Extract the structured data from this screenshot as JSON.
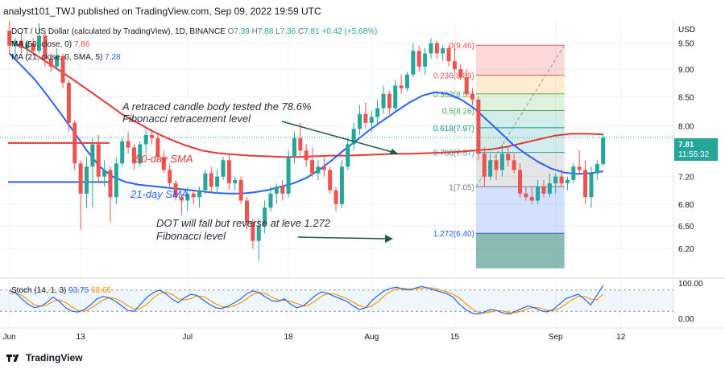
{
  "header": {
    "published_text": "analyst101_TWJ published on TradingView.com, Sep 09, 2022 19:59 UTC"
  },
  "legend": {
    "symbol_line": "DOT / US Dollar (calculated by TradingView), 1D, BINANCE",
    "ohlc": {
      "o_label": "O",
      "o": "7.39",
      "h_label": "H",
      "h": "7.88",
      "l_label": "L",
      "l": "7.36",
      "c_label": "C",
      "c": "7.81",
      "change": "+0.42 (+5.68%)"
    },
    "ma1_label": "MA (50, close, 0)",
    "ma1_value": "7.86",
    "ma2_label": "MA (21, close, 0, SMA, 5)",
    "ma2_value": "7.28",
    "stoch_label": "Stoch (14, 1, 3)",
    "stoch_k": "93.75",
    "stoch_d": "68.65"
  },
  "price_axis": {
    "currency": "USD",
    "ticks": [
      "9.50",
      "9.00",
      "8.50",
      "8.00",
      "7.20",
      "6.80",
      "6.50",
      "6.20"
    ],
    "last_price": "7.81",
    "countdown": "11:55:32"
  },
  "stoch_axis": {
    "ticks": [
      "100.00",
      "0.00"
    ]
  },
  "time_axis": {
    "ticks": [
      "Jun",
      "13",
      "Jul",
      "18",
      "Aug",
      "15",
      "Sep",
      "12"
    ]
  },
  "fibonacci": {
    "levels": [
      {
        "label": "0(9.46)",
        "value": 9.46
      },
      {
        "label": "0.236(8.89)",
        "value": 8.89
      },
      {
        "label": "0.382(8.55)",
        "value": 8.55
      },
      {
        "label": "0.5(8.26)",
        "value": 8.26
      },
      {
        "label": "0.618(7.97)",
        "value": 7.97
      },
      {
        "label": "0.786(7.57)",
        "value": 7.57
      },
      {
        "label": "1(7.05)",
        "value": 7.05
      },
      {
        "label": "1.272(6.40)",
        "value": 6.4
      }
    ]
  },
  "annotations": {
    "note1_line1": "A retraced candle body tested the 78.6%",
    "note1_line2": "Fibonacci retracement level",
    "sma50_label": "50-day SMA",
    "sma21_label": "21-day SMA",
    "note2_line1": "DOT will fall but reverse at leve 1.272",
    "note2_line2": "Fibonacci level"
  },
  "branding": {
    "footer": "TradingView"
  },
  "colors": {
    "up": "#26a69a",
    "down": "#ef5350",
    "ma50": "#e53935",
    "ma21": "#2962ff",
    "stoch_k": "#2962ff",
    "stoch_d": "#ff9800"
  },
  "chart_data": {
    "type": "candlestick",
    "symbol": "DOT / US Dollar",
    "interval": "1D",
    "y_scale": "log",
    "ylim": [
      5.85,
      9.95
    ],
    "candles": [
      {
        "date": "2022-06-01",
        "o": 9.75,
        "h": 9.95,
        "l": 9.3,
        "c": 9.45
      },
      {
        "date": "2022-06-02",
        "o": 9.45,
        "h": 9.6,
        "l": 9.2,
        "c": 9.55
      },
      {
        "date": "2022-06-03",
        "o": 9.55,
        "h": 9.7,
        "l": 9.3,
        "c": 9.4
      },
      {
        "date": "2022-06-04",
        "o": 9.4,
        "h": 9.55,
        "l": 9.25,
        "c": 9.5
      },
      {
        "date": "2022-06-05",
        "o": 9.5,
        "h": 9.6,
        "l": 9.3,
        "c": 9.35
      },
      {
        "date": "2022-06-06",
        "o": 9.35,
        "h": 9.9,
        "l": 9.3,
        "c": 9.65
      },
      {
        "date": "2022-06-07",
        "o": 9.65,
        "h": 9.7,
        "l": 9.05,
        "c": 9.2
      },
      {
        "date": "2022-06-08",
        "o": 9.2,
        "h": 9.3,
        "l": 8.95,
        "c": 9.05
      },
      {
        "date": "2022-06-09",
        "o": 9.05,
        "h": 9.4,
        "l": 8.98,
        "c": 9.25
      },
      {
        "date": "2022-06-10",
        "o": 9.25,
        "h": 9.3,
        "l": 8.65,
        "c": 8.75
      },
      {
        "date": "2022-06-11",
        "o": 8.75,
        "h": 8.8,
        "l": 7.9,
        "c": 8.05
      },
      {
        "date": "2022-06-12",
        "o": 8.05,
        "h": 8.1,
        "l": 7.3,
        "c": 7.4
      },
      {
        "date": "2022-06-13",
        "o": 7.4,
        "h": 7.45,
        "l": 6.45,
        "c": 6.95
      },
      {
        "date": "2022-06-14",
        "o": 6.95,
        "h": 7.5,
        "l": 6.75,
        "c": 7.35
      },
      {
        "date": "2022-06-15",
        "o": 7.35,
        "h": 7.8,
        "l": 6.75,
        "c": 7.7
      },
      {
        "date": "2022-06-16",
        "o": 7.7,
        "h": 7.85,
        "l": 7.1,
        "c": 7.2
      },
      {
        "date": "2022-06-17",
        "o": 7.2,
        "h": 7.45,
        "l": 7.05,
        "c": 7.3
      },
      {
        "date": "2022-06-18",
        "o": 7.3,
        "h": 7.35,
        "l": 6.55,
        "c": 6.9
      },
      {
        "date": "2022-06-19",
        "o": 6.9,
        "h": 7.5,
        "l": 6.8,
        "c": 7.4
      },
      {
        "date": "2022-06-20",
        "o": 7.4,
        "h": 7.8,
        "l": 7.35,
        "c": 7.75
      },
      {
        "date": "2022-06-21",
        "o": 7.75,
        "h": 7.9,
        "l": 7.55,
        "c": 7.65
      },
      {
        "date": "2022-06-22",
        "o": 7.65,
        "h": 7.7,
        "l": 7.3,
        "c": 7.4
      },
      {
        "date": "2022-06-23",
        "o": 7.4,
        "h": 7.75,
        "l": 7.35,
        "c": 7.7
      },
      {
        "date": "2022-06-24",
        "o": 7.7,
        "h": 7.95,
        "l": 7.55,
        "c": 7.85
      },
      {
        "date": "2022-06-25",
        "o": 7.85,
        "h": 7.95,
        "l": 7.7,
        "c": 7.8
      },
      {
        "date": "2022-06-26",
        "o": 7.8,
        "h": 7.9,
        "l": 7.45,
        "c": 7.5
      },
      {
        "date": "2022-06-27",
        "o": 7.5,
        "h": 7.6,
        "l": 7.25,
        "c": 7.3
      },
      {
        "date": "2022-06-28",
        "o": 7.3,
        "h": 7.4,
        "l": 7.05,
        "c": 7.1
      },
      {
        "date": "2022-06-29",
        "o": 7.1,
        "h": 7.15,
        "l": 6.85,
        "c": 6.9
      },
      {
        "date": "2022-06-30",
        "o": 6.9,
        "h": 6.95,
        "l": 6.65,
        "c": 6.85
      },
      {
        "date": "2022-07-01",
        "o": 6.85,
        "h": 7.05,
        "l": 6.7,
        "c": 6.95
      },
      {
        "date": "2022-07-02",
        "o": 6.95,
        "h": 7.0,
        "l": 6.8,
        "c": 6.9
      },
      {
        "date": "2022-07-03",
        "o": 6.9,
        "h": 7.05,
        "l": 6.75,
        "c": 7.0
      },
      {
        "date": "2022-07-04",
        "o": 7.0,
        "h": 7.3,
        "l": 6.95,
        "c": 7.25
      },
      {
        "date": "2022-07-05",
        "o": 7.25,
        "h": 7.35,
        "l": 6.95,
        "c": 7.05
      },
      {
        "date": "2022-07-06",
        "o": 7.05,
        "h": 7.3,
        "l": 6.95,
        "c": 7.2
      },
      {
        "date": "2022-07-07",
        "o": 7.2,
        "h": 7.5,
        "l": 7.15,
        "c": 7.45
      },
      {
        "date": "2022-07-08",
        "o": 7.45,
        "h": 7.55,
        "l": 7.0,
        "c": 7.1
      },
      {
        "date": "2022-07-09",
        "o": 7.1,
        "h": 7.2,
        "l": 7.0,
        "c": 7.15
      },
      {
        "date": "2022-07-10",
        "o": 7.15,
        "h": 7.2,
        "l": 6.8,
        "c": 6.85
      },
      {
        "date": "2022-07-11",
        "o": 6.85,
        "h": 6.9,
        "l": 6.45,
        "c": 6.55
      },
      {
        "date": "2022-07-12",
        "o": 6.55,
        "h": 6.6,
        "l": 6.2,
        "c": 6.3
      },
      {
        "date": "2022-07-13",
        "o": 6.3,
        "h": 6.6,
        "l": 6.05,
        "c": 6.5
      },
      {
        "date": "2022-07-14",
        "o": 6.5,
        "h": 6.85,
        "l": 6.4,
        "c": 6.75
      },
      {
        "date": "2022-07-15",
        "o": 6.75,
        "h": 7.05,
        "l": 6.7,
        "c": 6.95
      },
      {
        "date": "2022-07-16",
        "o": 6.95,
        "h": 7.1,
        "l": 6.8,
        "c": 7.05
      },
      {
        "date": "2022-07-17",
        "o": 7.05,
        "h": 7.15,
        "l": 6.85,
        "c": 6.95
      },
      {
        "date": "2022-07-18",
        "o": 6.95,
        "h": 7.6,
        "l": 6.9,
        "c": 7.5
      },
      {
        "date": "2022-07-19",
        "o": 7.5,
        "h": 7.9,
        "l": 7.4,
        "c": 7.8
      },
      {
        "date": "2022-07-20",
        "o": 7.8,
        "h": 8.05,
        "l": 7.5,
        "c": 7.6
      },
      {
        "date": "2022-07-21",
        "o": 7.6,
        "h": 7.7,
        "l": 7.35,
        "c": 7.45
      },
      {
        "date": "2022-07-22",
        "o": 7.45,
        "h": 7.65,
        "l": 7.2,
        "c": 7.25
      },
      {
        "date": "2022-07-23",
        "o": 7.25,
        "h": 7.45,
        "l": 7.15,
        "c": 7.35
      },
      {
        "date": "2022-07-24",
        "o": 7.35,
        "h": 7.5,
        "l": 7.2,
        "c": 7.3
      },
      {
        "date": "2022-07-25",
        "o": 7.3,
        "h": 7.35,
        "l": 6.95,
        "c": 7.0
      },
      {
        "date": "2022-07-26",
        "o": 7.0,
        "h": 7.05,
        "l": 6.7,
        "c": 6.8
      },
      {
        "date": "2022-07-27",
        "o": 6.8,
        "h": 7.45,
        "l": 6.75,
        "c": 7.35
      },
      {
        "date": "2022-07-28",
        "o": 7.35,
        "h": 7.8,
        "l": 7.3,
        "c": 7.7
      },
      {
        "date": "2022-07-29",
        "o": 7.7,
        "h": 8.05,
        "l": 7.6,
        "c": 7.95
      },
      {
        "date": "2022-07-30",
        "o": 7.95,
        "h": 8.35,
        "l": 7.85,
        "c": 8.2
      },
      {
        "date": "2022-07-31",
        "o": 8.2,
        "h": 8.4,
        "l": 7.95,
        "c": 8.05
      },
      {
        "date": "2022-08-01",
        "o": 8.05,
        "h": 8.25,
        "l": 7.9,
        "c": 8.15
      },
      {
        "date": "2022-08-02",
        "o": 8.15,
        "h": 8.45,
        "l": 8.0,
        "c": 8.3
      },
      {
        "date": "2022-08-03",
        "o": 8.3,
        "h": 8.7,
        "l": 8.2,
        "c": 8.55
      },
      {
        "date": "2022-08-04",
        "o": 8.55,
        "h": 8.6,
        "l": 8.2,
        "c": 8.3
      },
      {
        "date": "2022-08-05",
        "o": 8.3,
        "h": 8.8,
        "l": 8.25,
        "c": 8.7
      },
      {
        "date": "2022-08-06",
        "o": 8.7,
        "h": 8.9,
        "l": 8.55,
        "c": 8.65
      },
      {
        "date": "2022-08-07",
        "o": 8.65,
        "h": 8.95,
        "l": 8.6,
        "c": 8.9
      },
      {
        "date": "2022-08-08",
        "o": 8.9,
        "h": 9.5,
        "l": 8.85,
        "c": 9.35
      },
      {
        "date": "2022-08-09",
        "o": 9.35,
        "h": 9.45,
        "l": 8.95,
        "c": 9.05
      },
      {
        "date": "2022-08-10",
        "o": 9.05,
        "h": 9.4,
        "l": 8.9,
        "c": 9.3
      },
      {
        "date": "2022-08-11",
        "o": 9.3,
        "h": 9.6,
        "l": 9.2,
        "c": 9.5
      },
      {
        "date": "2022-08-12",
        "o": 9.5,
        "h": 9.55,
        "l": 9.2,
        "c": 9.3
      },
      {
        "date": "2022-08-13",
        "o": 9.3,
        "h": 9.46,
        "l": 9.15,
        "c": 9.4
      },
      {
        "date": "2022-08-14",
        "o": 9.4,
        "h": 9.45,
        "l": 9.05,
        "c": 9.15
      },
      {
        "date": "2022-08-15",
        "o": 9.15,
        "h": 9.4,
        "l": 8.95,
        "c": 9.0
      },
      {
        "date": "2022-08-16",
        "o": 9.0,
        "h": 9.1,
        "l": 8.8,
        "c": 8.85
      },
      {
        "date": "2022-08-17",
        "o": 8.85,
        "h": 9.0,
        "l": 8.5,
        "c": 8.55
      },
      {
        "date": "2022-08-18",
        "o": 8.55,
        "h": 8.65,
        "l": 8.35,
        "c": 8.45
      },
      {
        "date": "2022-08-19",
        "o": 8.45,
        "h": 8.5,
        "l": 7.45,
        "c": 7.55
      },
      {
        "date": "2022-08-20",
        "o": 7.55,
        "h": 7.65,
        "l": 7.05,
        "c": 7.2
      },
      {
        "date": "2022-08-21",
        "o": 7.2,
        "h": 7.55,
        "l": 7.15,
        "c": 7.45
      },
      {
        "date": "2022-08-22",
        "o": 7.45,
        "h": 7.55,
        "l": 7.15,
        "c": 7.3
      },
      {
        "date": "2022-08-23",
        "o": 7.3,
        "h": 7.7,
        "l": 7.2,
        "c": 7.55
      },
      {
        "date": "2022-08-24",
        "o": 7.55,
        "h": 7.65,
        "l": 7.35,
        "c": 7.45
      },
      {
        "date": "2022-08-25",
        "o": 7.45,
        "h": 7.55,
        "l": 7.25,
        "c": 7.3
      },
      {
        "date": "2022-08-26",
        "o": 7.3,
        "h": 7.4,
        "l": 6.9,
        "c": 6.95
      },
      {
        "date": "2022-08-27",
        "o": 6.95,
        "h": 7.05,
        "l": 6.85,
        "c": 6.9
      },
      {
        "date": "2022-08-28",
        "o": 6.9,
        "h": 7.05,
        "l": 6.8,
        "c": 6.85
      },
      {
        "date": "2022-08-29",
        "o": 6.85,
        "h": 7.15,
        "l": 6.8,
        "c": 7.05
      },
      {
        "date": "2022-08-30",
        "o": 7.05,
        "h": 7.15,
        "l": 6.9,
        "c": 6.95
      },
      {
        "date": "2022-08-31",
        "o": 6.95,
        "h": 7.25,
        "l": 6.9,
        "c": 7.1
      },
      {
        "date": "2022-09-01",
        "o": 7.1,
        "h": 7.25,
        "l": 6.95,
        "c": 7.2
      },
      {
        "date": "2022-09-02",
        "o": 7.2,
        "h": 7.3,
        "l": 7.05,
        "c": 7.1
      },
      {
        "date": "2022-09-03",
        "o": 7.1,
        "h": 7.2,
        "l": 7.0,
        "c": 7.15
      },
      {
        "date": "2022-09-04",
        "o": 7.15,
        "h": 7.4,
        "l": 7.1,
        "c": 7.35
      },
      {
        "date": "2022-09-05",
        "o": 7.35,
        "h": 7.6,
        "l": 7.25,
        "c": 7.3
      },
      {
        "date": "2022-09-06",
        "o": 7.3,
        "h": 7.45,
        "l": 6.8,
        "c": 6.9
      },
      {
        "date": "2022-09-07",
        "o": 6.9,
        "h": 7.35,
        "l": 6.75,
        "c": 7.25
      },
      {
        "date": "2022-09-08",
        "o": 7.25,
        "h": 7.45,
        "l": 7.15,
        "c": 7.39
      },
      {
        "date": "2022-09-09",
        "o": 7.39,
        "h": 7.88,
        "l": 7.36,
        "c": 7.81
      }
    ],
    "ma50": [
      9.55,
      9.4,
      9.2,
      9.0,
      8.8,
      8.6,
      8.4,
      8.2,
      8.05,
      7.9,
      7.78,
      7.68,
      7.6,
      7.56,
      7.54,
      7.52,
      7.51,
      7.5,
      7.5,
      7.51,
      7.52,
      7.52,
      7.53,
      7.54,
      7.55,
      7.55,
      7.56,
      7.57,
      7.58,
      7.6,
      7.62,
      7.66,
      7.72,
      7.78,
      7.84,
      7.87,
      7.87,
      7.86
    ],
    "ma21": [
      9.3,
      9.05,
      8.8,
      8.5,
      8.2,
      7.9,
      7.6,
      7.35,
      7.2,
      7.12,
      7.08,
      7.06,
      7.04,
      7.02,
      7.0,
      6.98,
      6.96,
      6.95,
      6.95,
      6.97,
      7.0,
      7.05,
      7.1,
      7.18,
      7.3,
      7.45,
      7.62,
      7.78,
      7.95,
      8.1,
      8.25,
      8.4,
      8.52,
      8.58,
      8.55,
      8.45,
      8.3,
      8.1,
      7.9,
      7.7,
      7.55,
      7.42,
      7.32,
      7.26,
      7.24,
      7.25,
      7.28
    ],
    "stoch_k": [
      78,
      72,
      55,
      40,
      30,
      34,
      45,
      60,
      48,
      30,
      20,
      18,
      25,
      38,
      55,
      62,
      58,
      48,
      35,
      22,
      20,
      40,
      60,
      72,
      80,
      70,
      55,
      44,
      58,
      68,
      65,
      52,
      40,
      30,
      28,
      35,
      44,
      55,
      70,
      78,
      72,
      60,
      50,
      48,
      55,
      40,
      30,
      35,
      50,
      65,
      75,
      70,
      62,
      55,
      48,
      35,
      25,
      30,
      50,
      65,
      78,
      85,
      88,
      82,
      80,
      86,
      90,
      85,
      80,
      75,
      70,
      60,
      40,
      25,
      15,
      12,
      18,
      25,
      22,
      15,
      12,
      20,
      28,
      35,
      30,
      22,
      18,
      25,
      40,
      55,
      62,
      68,
      55,
      38,
      65,
      93.75
    ],
    "stoch_d": [
      70,
      72,
      65,
      52,
      38,
      34,
      38,
      48,
      52,
      45,
      32,
      22,
      20,
      28,
      40,
      52,
      58,
      56,
      47,
      35,
      26,
      28,
      40,
      57,
      70,
      74,
      68,
      56,
      52,
      56,
      63,
      62,
      52,
      41,
      33,
      31,
      36,
      44,
      56,
      68,
      73,
      70,
      60,
      52,
      51,
      48,
      42,
      35,
      38,
      50,
      63,
      70,
      69,
      62,
      55,
      46,
      36,
      30,
      35,
      48,
      64,
      76,
      84,
      85,
      83,
      83,
      85,
      87,
      85,
      80,
      75,
      68,
      57,
      42,
      27,
      17,
      15,
      18,
      22,
      21,
      16,
      16,
      21,
      28,
      31,
      29,
      23,
      22,
      28,
      40,
      52,
      62,
      62,
      54,
      53,
      68.65
    ]
  }
}
